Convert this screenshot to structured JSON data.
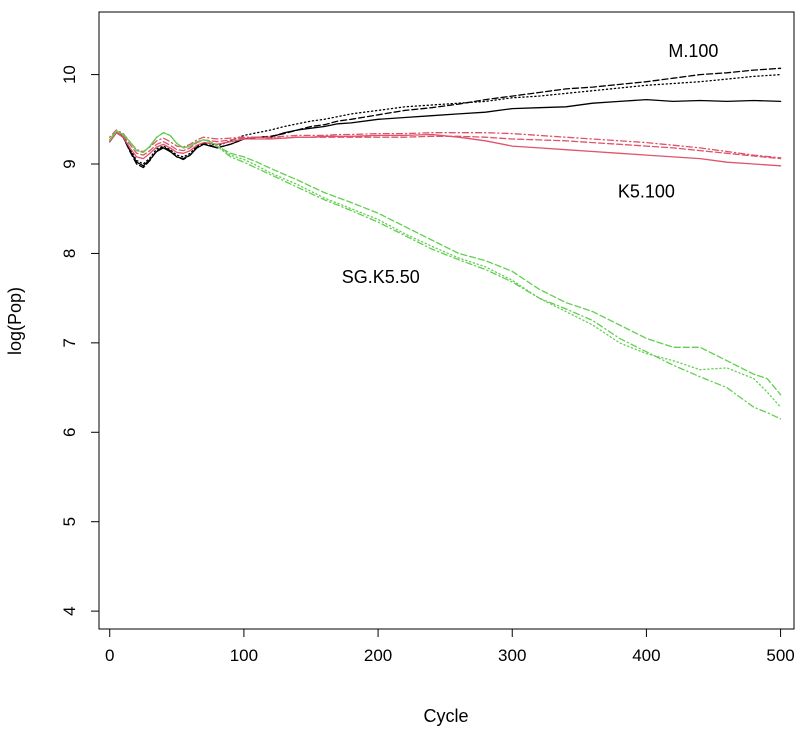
{
  "chart_data": {
    "type": "line",
    "title": "",
    "xlabel": "Cycle",
    "ylabel": "log(Pop)",
    "xlim": [
      -8,
      510
    ],
    "ylim": [
      3.8,
      10.7
    ],
    "xticks": [
      0,
      100,
      200,
      300,
      400,
      500
    ],
    "yticks": [
      4,
      5,
      6,
      7,
      8,
      9,
      10
    ],
    "grid": false,
    "legend": "none",
    "annotations": [
      {
        "text": "M.100",
        "x": 435,
        "y": 10.25
      },
      {
        "text": "K5.100",
        "x": 400,
        "y": 8.68
      },
      {
        "text": "SG.K5.50",
        "x": 202,
        "y": 7.72
      }
    ],
    "series": [
      {
        "name": "M.100 solid",
        "color": "#000000",
        "dash": "solid",
        "x": [
          0,
          5,
          10,
          15,
          20,
          25,
          30,
          35,
          40,
          45,
          50,
          55,
          60,
          65,
          70,
          75,
          80,
          90,
          100,
          110,
          120,
          130,
          140,
          150,
          160,
          170,
          180,
          200,
          220,
          240,
          260,
          280,
          300,
          320,
          340,
          360,
          380,
          400,
          420,
          440,
          460,
          480,
          500
        ],
        "y": [
          9.25,
          9.35,
          9.3,
          9.15,
          9.02,
          8.98,
          9.05,
          9.14,
          9.18,
          9.14,
          9.08,
          9.06,
          9.1,
          9.18,
          9.22,
          9.2,
          9.18,
          9.22,
          9.28,
          9.3,
          9.3,
          9.35,
          9.38,
          9.4,
          9.42,
          9.45,
          9.46,
          9.5,
          9.52,
          9.54,
          9.56,
          9.58,
          9.62,
          9.63,
          9.64,
          9.68,
          9.7,
          9.72,
          9.7,
          9.71,
          9.7,
          9.71,
          9.7
        ]
      },
      {
        "name": "M.100 dashed",
        "color": "#000000",
        "dash": "dashed",
        "x": [
          0,
          5,
          10,
          15,
          20,
          25,
          30,
          35,
          40,
          45,
          50,
          55,
          60,
          65,
          70,
          75,
          80,
          90,
          100,
          110,
          120,
          130,
          140,
          150,
          160,
          170,
          180,
          200,
          220,
          240,
          260,
          280,
          300,
          320,
          340,
          360,
          380,
          400,
          420,
          440,
          460,
          480,
          500
        ],
        "y": [
          9.25,
          9.36,
          9.3,
          9.14,
          9.0,
          8.96,
          9.04,
          9.15,
          9.19,
          9.15,
          9.08,
          9.05,
          9.1,
          9.19,
          9.23,
          9.21,
          9.18,
          9.22,
          9.28,
          9.3,
          9.31,
          9.34,
          9.38,
          9.42,
          9.44,
          9.48,
          9.5,
          9.55,
          9.6,
          9.63,
          9.67,
          9.72,
          9.76,
          9.8,
          9.84,
          9.86,
          9.89,
          9.92,
          9.96,
          10.0,
          10.02,
          10.05,
          10.07
        ]
      },
      {
        "name": "M.100 dotted",
        "color": "#000000",
        "dash": "dotted",
        "x": [
          0,
          5,
          10,
          15,
          20,
          25,
          30,
          35,
          40,
          45,
          50,
          55,
          60,
          65,
          70,
          75,
          80,
          90,
          100,
          110,
          120,
          130,
          140,
          150,
          160,
          170,
          180,
          200,
          220,
          240,
          260,
          280,
          300,
          320,
          340,
          360,
          380,
          400,
          420,
          440,
          460,
          480,
          500
        ],
        "y": [
          9.27,
          9.37,
          9.32,
          9.17,
          9.04,
          9.0,
          9.07,
          9.17,
          9.2,
          9.16,
          9.1,
          9.08,
          9.12,
          9.2,
          9.24,
          9.23,
          9.2,
          9.26,
          9.32,
          9.35,
          9.38,
          9.42,
          9.45,
          9.48,
          9.5,
          9.53,
          9.56,
          9.6,
          9.64,
          9.66,
          9.68,
          9.7,
          9.74,
          9.76,
          9.79,
          9.82,
          9.85,
          9.88,
          9.9,
          9.92,
          9.95,
          9.98,
          10.0
        ]
      },
      {
        "name": "K5.100 solid",
        "color": "#DF536B",
        "dash": "solid",
        "x": [
          0,
          5,
          10,
          15,
          20,
          25,
          30,
          35,
          40,
          45,
          50,
          55,
          60,
          65,
          70,
          75,
          80,
          90,
          100,
          110,
          120,
          130,
          140,
          150,
          160,
          170,
          180,
          200,
          220,
          240,
          260,
          280,
          300,
          320,
          340,
          360,
          380,
          400,
          420,
          440,
          460,
          480,
          500
        ],
        "y": [
          9.25,
          9.35,
          9.3,
          9.18,
          9.08,
          9.06,
          9.12,
          9.19,
          9.22,
          9.18,
          9.13,
          9.12,
          9.15,
          9.21,
          9.24,
          9.23,
          9.22,
          9.25,
          9.28,
          9.28,
          9.28,
          9.29,
          9.3,
          9.3,
          9.31,
          9.31,
          9.31,
          9.32,
          9.32,
          9.33,
          9.3,
          9.26,
          9.2,
          9.18,
          9.16,
          9.14,
          9.12,
          9.1,
          9.08,
          9.06,
          9.02,
          9.0,
          8.98
        ]
      },
      {
        "name": "K5.100 dashed",
        "color": "#DF536B",
        "dash": "dashed",
        "x": [
          0,
          5,
          10,
          15,
          20,
          25,
          30,
          35,
          40,
          45,
          50,
          55,
          60,
          65,
          70,
          75,
          80,
          90,
          100,
          110,
          120,
          130,
          140,
          150,
          160,
          170,
          180,
          200,
          220,
          240,
          260,
          280,
          300,
          320,
          340,
          360,
          380,
          400,
          420,
          440,
          460,
          480,
          500
        ],
        "y": [
          9.27,
          9.36,
          9.32,
          9.22,
          9.12,
          9.1,
          9.15,
          9.22,
          9.25,
          9.21,
          9.16,
          9.15,
          9.18,
          9.24,
          9.27,
          9.26,
          9.25,
          9.27,
          9.29,
          9.3,
          9.29,
          9.29,
          9.3,
          9.3,
          9.3,
          9.3,
          9.3,
          9.3,
          9.3,
          9.31,
          9.31,
          9.3,
          9.28,
          9.27,
          9.26,
          9.24,
          9.22,
          9.2,
          9.18,
          9.15,
          9.12,
          9.09,
          9.06
        ]
      },
      {
        "name": "K5.100 dotdash",
        "color": "#DF536B",
        "dash": "dotdash",
        "x": [
          0,
          5,
          10,
          15,
          20,
          25,
          30,
          35,
          40,
          45,
          50,
          55,
          60,
          65,
          70,
          75,
          80,
          90,
          100,
          110,
          120,
          130,
          140,
          150,
          160,
          170,
          180,
          200,
          220,
          240,
          260,
          280,
          300,
          320,
          340,
          360,
          380,
          400,
          420,
          440,
          460,
          480,
          500
        ],
        "y": [
          9.3,
          9.38,
          9.34,
          9.25,
          9.16,
          9.14,
          9.19,
          9.26,
          9.29,
          9.25,
          9.2,
          9.19,
          9.22,
          9.27,
          9.3,
          9.29,
          9.28,
          9.29,
          9.3,
          9.3,
          9.3,
          9.31,
          9.32,
          9.32,
          9.32,
          9.33,
          9.33,
          9.34,
          9.34,
          9.35,
          9.35,
          9.35,
          9.34,
          9.32,
          9.3,
          9.28,
          9.26,
          9.24,
          9.21,
          9.18,
          9.14,
          9.1,
          9.07
        ]
      },
      {
        "name": "SG.K5.50 dashed",
        "color": "#61D04F",
        "dash": "dashed",
        "x": [
          0,
          5,
          10,
          15,
          20,
          25,
          30,
          35,
          40,
          45,
          50,
          55,
          60,
          65,
          70,
          75,
          80,
          90,
          100,
          110,
          120,
          140,
          160,
          180,
          200,
          220,
          240,
          260,
          280,
          300,
          320,
          340,
          360,
          380,
          400,
          420,
          440,
          460,
          480,
          490,
          500
        ],
        "y": [
          9.27,
          9.37,
          9.33,
          9.25,
          9.15,
          9.13,
          9.2,
          9.3,
          9.35,
          9.32,
          9.23,
          9.18,
          9.2,
          9.25,
          9.27,
          9.25,
          9.2,
          9.12,
          9.08,
          9.02,
          8.95,
          8.82,
          8.68,
          8.57,
          8.45,
          8.3,
          8.15,
          8.0,
          7.92,
          7.8,
          7.6,
          7.45,
          7.35,
          7.2,
          7.05,
          6.95,
          6.95,
          6.8,
          6.65,
          6.6,
          6.42
        ]
      },
      {
        "name": "SG.K5.50 dotted",
        "color": "#61D04F",
        "dash": "dotted",
        "x": [
          0,
          5,
          10,
          15,
          20,
          25,
          30,
          35,
          40,
          45,
          50,
          55,
          60,
          65,
          70,
          75,
          80,
          90,
          100,
          110,
          120,
          140,
          160,
          180,
          200,
          220,
          240,
          260,
          280,
          300,
          320,
          340,
          360,
          380,
          400,
          420,
          440,
          460,
          480,
          490,
          500
        ],
        "y": [
          9.27,
          9.37,
          9.33,
          9.25,
          9.15,
          9.13,
          9.2,
          9.3,
          9.35,
          9.32,
          9.23,
          9.18,
          9.2,
          9.25,
          9.27,
          9.25,
          9.2,
          9.1,
          9.05,
          8.98,
          8.9,
          8.77,
          8.62,
          8.5,
          8.38,
          8.22,
          8.08,
          7.95,
          7.85,
          7.7,
          7.5,
          7.35,
          7.2,
          7.0,
          6.88,
          6.8,
          6.7,
          6.72,
          6.6,
          6.45,
          6.28
        ]
      },
      {
        "name": "SG.K5.50 dotdash",
        "color": "#61D04F",
        "dash": "dotdash",
        "x": [
          0,
          5,
          10,
          15,
          20,
          25,
          30,
          35,
          40,
          45,
          50,
          55,
          60,
          65,
          70,
          75,
          80,
          90,
          100,
          110,
          120,
          140,
          160,
          180,
          200,
          220,
          240,
          260,
          280,
          300,
          320,
          340,
          360,
          380,
          400,
          420,
          440,
          460,
          480,
          490,
          500
        ],
        "y": [
          9.27,
          9.37,
          9.33,
          9.25,
          9.15,
          9.13,
          9.2,
          9.3,
          9.35,
          9.32,
          9.23,
          9.18,
          9.2,
          9.25,
          9.27,
          9.25,
          9.2,
          9.08,
          9.02,
          8.95,
          8.88,
          8.74,
          8.6,
          8.48,
          8.35,
          8.2,
          8.05,
          7.93,
          7.82,
          7.68,
          7.5,
          7.38,
          7.25,
          7.05,
          6.9,
          6.75,
          6.62,
          6.5,
          6.28,
          6.22,
          6.15
        ]
      }
    ]
  }
}
